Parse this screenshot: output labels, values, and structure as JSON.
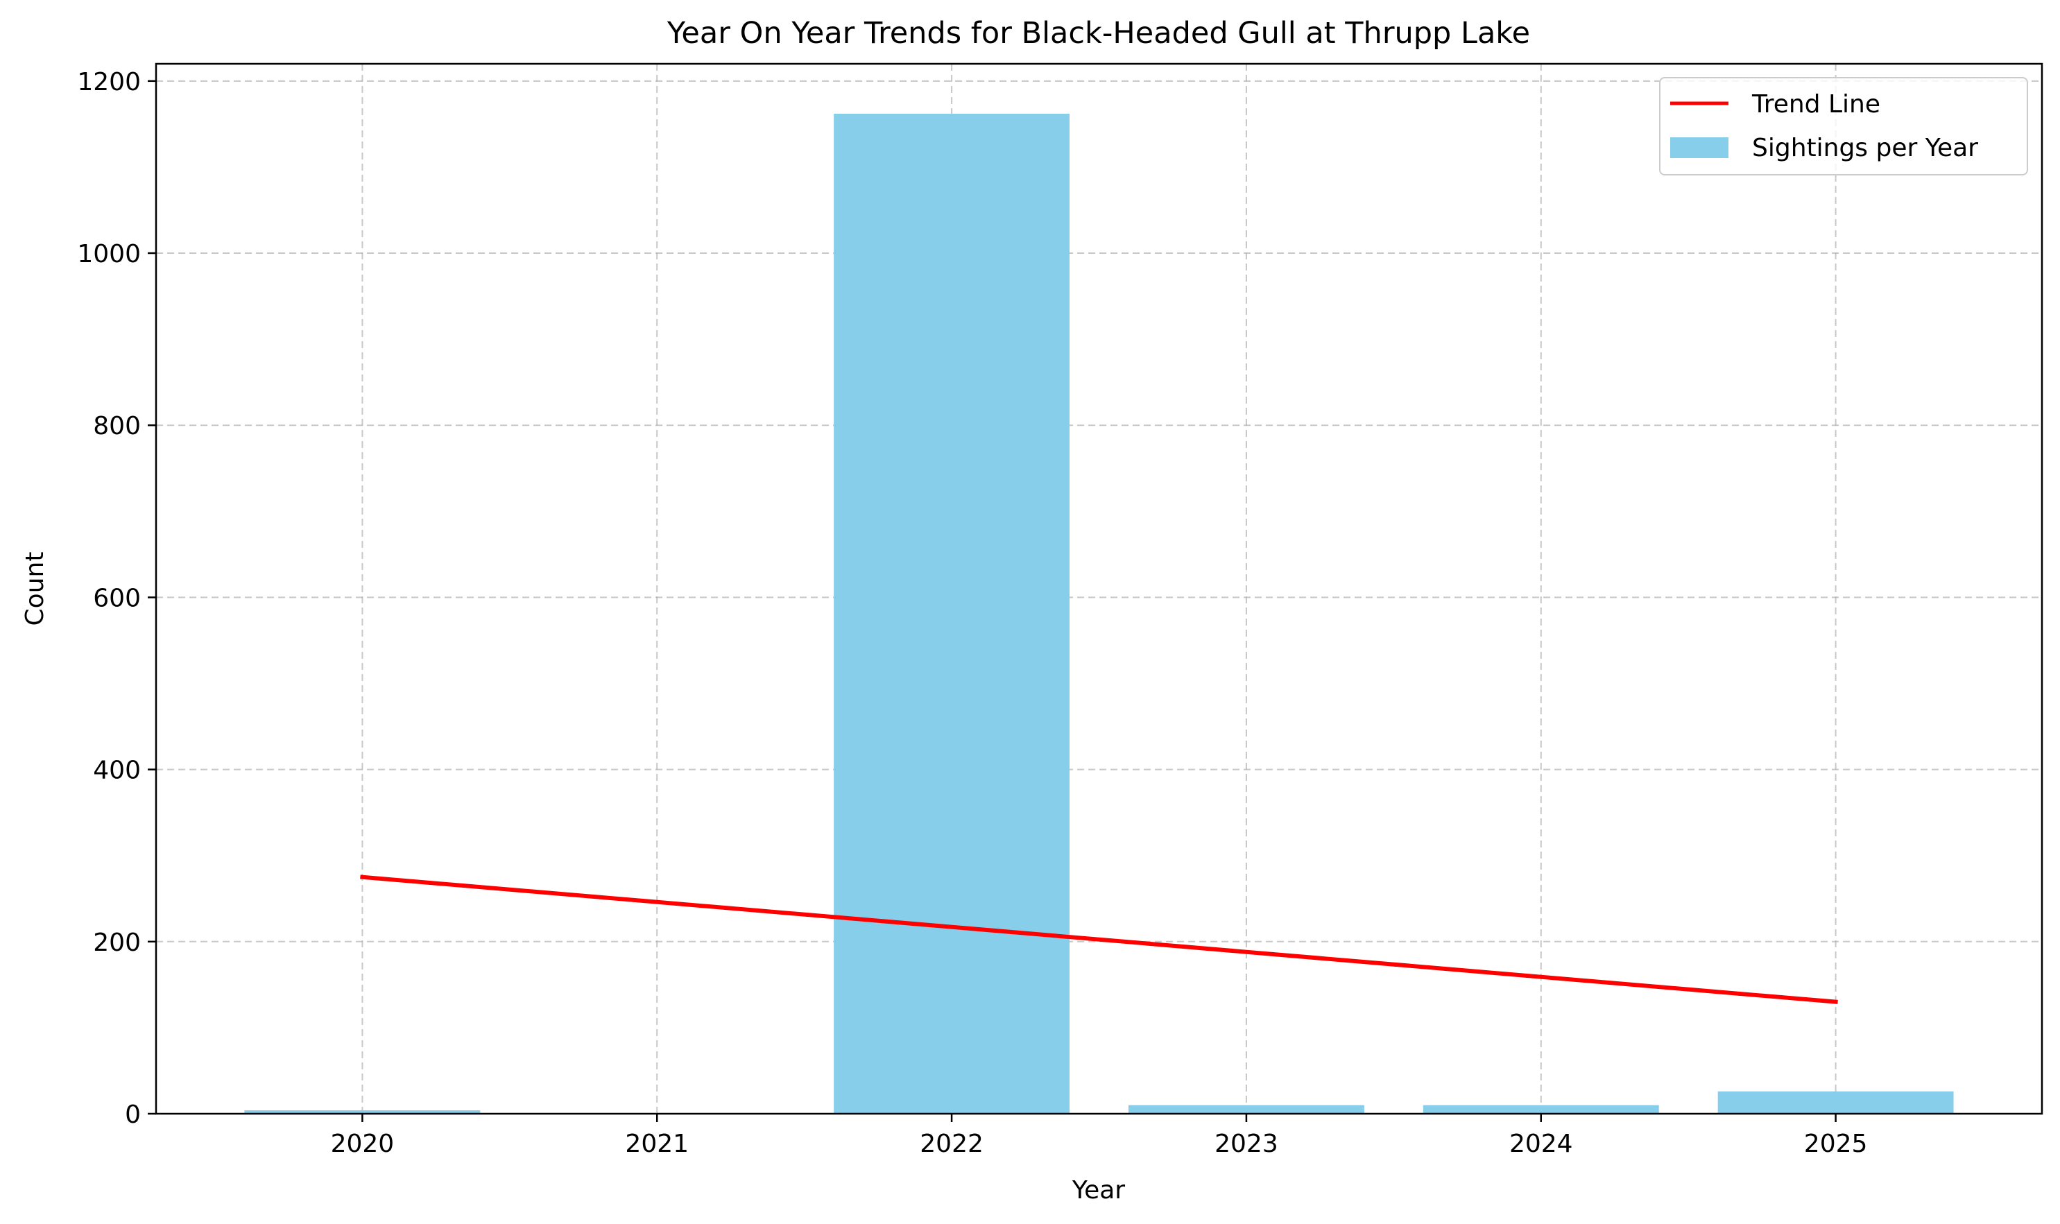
{
  "chart_data": {
    "type": "bar",
    "title": "Year On Year Trends for Black-Headed Gull at Thrupp Lake",
    "xlabel": "Year",
    "ylabel": "Count",
    "categories": [
      "2020",
      "2021",
      "2022",
      "2023",
      "2024",
      "2025"
    ],
    "series": [
      {
        "name": "Sightings per Year",
        "type": "bar",
        "color": "#87ceeb",
        "values": [
          4,
          0,
          1162,
          10,
          10,
          26
        ]
      },
      {
        "name": "Trend Line",
        "type": "line",
        "color": "#ff0000",
        "x": [
          "2020",
          "2025"
        ],
        "values": [
          275,
          130
        ]
      }
    ],
    "ylim": [
      0,
      1220
    ],
    "yticks": [
      0,
      200,
      400,
      600,
      800,
      1000,
      1200
    ],
    "grid": true,
    "legend_position": "top-right"
  }
}
